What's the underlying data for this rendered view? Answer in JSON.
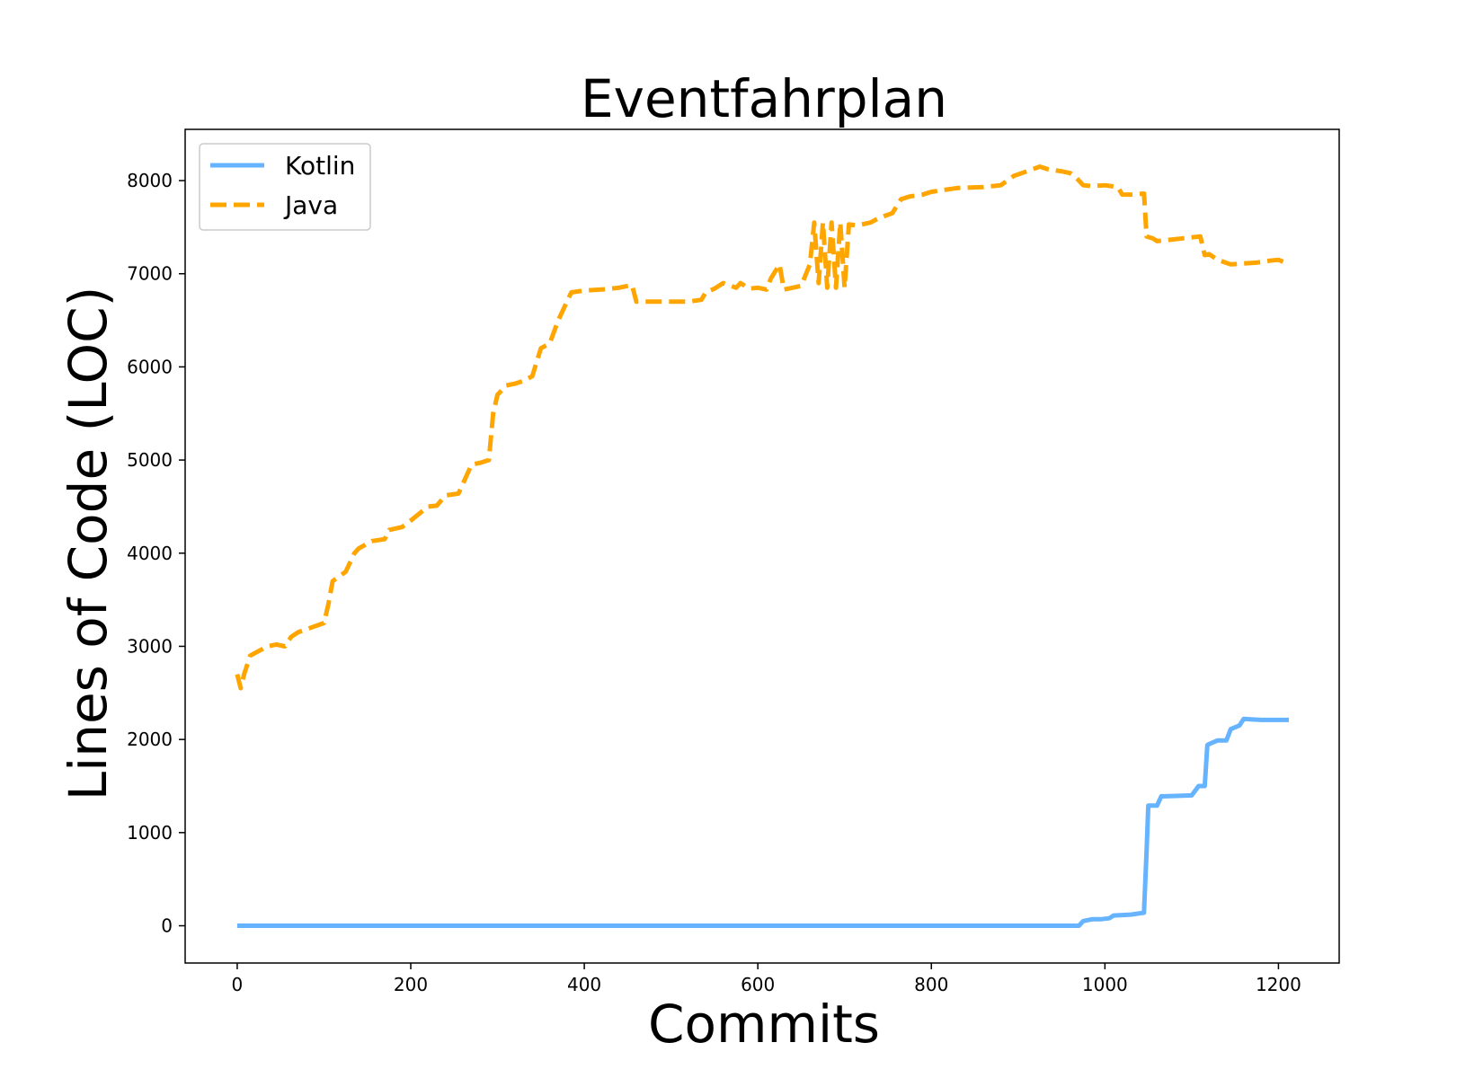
{
  "chart_data": {
    "type": "line",
    "title": "Eventfahrplan",
    "xlabel": "Commits",
    "ylabel": "Lines of Code (LOC)",
    "xlim": [
      -60,
      1270
    ],
    "ylim": [
      -400,
      8550
    ],
    "xticks": [
      0,
      200,
      400,
      600,
      800,
      1000,
      1200
    ],
    "yticks": [
      0,
      1000,
      2000,
      3000,
      4000,
      5000,
      6000,
      7000,
      8000
    ],
    "grid": false,
    "legend_position": "top-left",
    "series": [
      {
        "name": "Kotlin",
        "color": "#66b3ff",
        "style": "solid",
        "x": [
          0,
          970,
          975,
          985,
          995,
          1005,
          1010,
          1030,
          1045,
          1048,
          1050,
          1052,
          1060,
          1065,
          1070,
          1100,
          1108,
          1115,
          1118,
          1120,
          1130,
          1140,
          1145,
          1155,
          1160,
          1180,
          1212
        ],
        "y": [
          0,
          0,
          50,
          70,
          70,
          80,
          110,
          120,
          140,
          800,
          1290,
          1290,
          1290,
          1390,
          1390,
          1400,
          1500,
          1500,
          1940,
          1950,
          1990,
          1990,
          2110,
          2150,
          2220,
          2210,
          2210
        ]
      },
      {
        "name": "Java",
        "color": "#ffa500",
        "style": "dashed",
        "x": [
          0,
          4,
          8,
          15,
          25,
          35,
          45,
          55,
          62,
          70,
          85,
          100,
          105,
          110,
          125,
          135,
          140,
          155,
          170,
          175,
          190,
          200,
          220,
          230,
          240,
          255,
          270,
          280,
          290,
          295,
          300,
          310,
          320,
          330,
          340,
          350,
          360,
          370,
          380,
          385,
          400,
          420,
          440,
          455,
          460,
          475,
          500,
          520,
          535,
          540,
          550,
          560,
          575,
          580,
          590,
          600,
          610,
          615,
          625,
          630,
          640,
          650,
          660,
          665,
          670,
          675,
          680,
          685,
          690,
          695,
          700,
          705,
          715,
          730,
          740,
          755,
          765,
          775,
          790,
          800,
          815,
          830,
          860,
          880,
          895,
          910,
          925,
          935,
          950,
          960,
          965,
          975,
          985,
          1000,
          1015,
          1020,
          1030,
          1045,
          1048,
          1055,
          1060,
          1070,
          1090,
          1110,
          1115,
          1120,
          1130,
          1145,
          1160,
          1175,
          1190,
          1200,
          1210
        ],
        "y": [
          2700,
          2550,
          2700,
          2900,
          2950,
          3000,
          3020,
          3000,
          3100,
          3150,
          3200,
          3250,
          3450,
          3700,
          3800,
          4000,
          4050,
          4130,
          4150,
          4250,
          4280,
          4350,
          4500,
          4510,
          4620,
          4640,
          4950,
          4970,
          5000,
          5500,
          5700,
          5800,
          5820,
          5850,
          5900,
          6200,
          6250,
          6500,
          6700,
          6800,
          6820,
          6830,
          6850,
          6880,
          6700,
          6700,
          6700,
          6700,
          6720,
          6800,
          6840,
          6900,
          6850,
          6900,
          6840,
          6850,
          6830,
          6950,
          7100,
          6830,
          6850,
          6870,
          7100,
          7550,
          6900,
          7550,
          6850,
          7550,
          6850,
          7550,
          6850,
          7530,
          7520,
          7550,
          7600,
          7650,
          7800,
          7830,
          7850,
          7880,
          7900,
          7920,
          7930,
          7950,
          8050,
          8100,
          8150,
          8120,
          8100,
          8080,
          8050,
          7950,
          7940,
          7950,
          7930,
          7850,
          7850,
          7860,
          7400,
          7380,
          7350,
          7360,
          7380,
          7400,
          7200,
          7210,
          7150,
          7100,
          7110,
          7120,
          7140,
          7150,
          7110
        ]
      }
    ]
  }
}
